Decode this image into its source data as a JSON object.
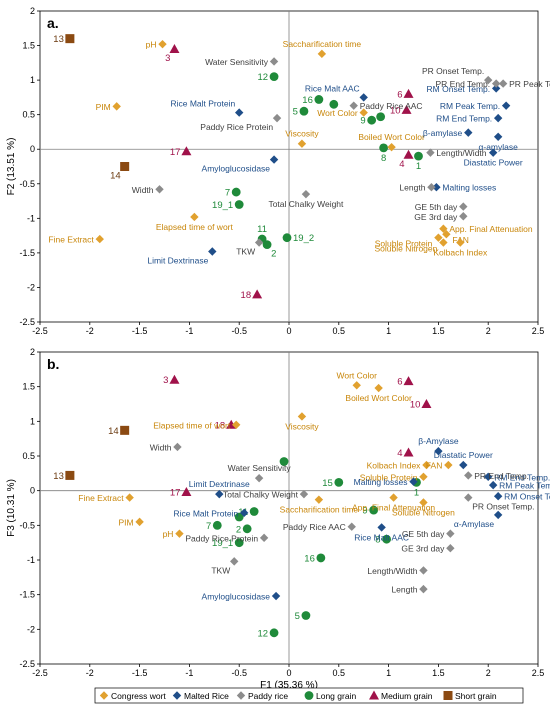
{
  "colors": {
    "congress_wort": "#E1A12F",
    "malted_rice": "#1F4E89",
    "paddy_rice": "#8C8C8C",
    "long_grain": "#1F8A3A",
    "medium_grain": "#A0124A",
    "short_grain": "#8B4A12",
    "label_congress": "#C8860A",
    "label_malted": "#1F4E89",
    "label_paddy": "#404040",
    "label_long": "#1F8A3A",
    "label_medium": "#A0124A",
    "label_short": "#6B3A10",
    "axis": "#000000",
    "zero_line": "#7F7F7F"
  },
  "legend": [
    {
      "key": "congress_wort",
      "label": "Congress wort",
      "marker": "diamond"
    },
    {
      "key": "malted_rice",
      "label": "Malted Rice",
      "marker": "diamond"
    },
    {
      "key": "paddy_rice",
      "label": "Paddy rice",
      "marker": "diamond"
    },
    {
      "key": "long_grain",
      "label": "Long grain",
      "marker": "circle"
    },
    {
      "key": "medium_grain",
      "label": "Medium grain",
      "marker": "triangle"
    },
    {
      "key": "short_grain",
      "label": "Short grain",
      "marker": "square"
    }
  ],
  "chart_data": [
    {
      "panel_label": "a.",
      "type": "scatter",
      "xlabel": "",
      "ylabel": "F2 (13.51 %)",
      "xlim": [
        -2.5,
        2.5
      ],
      "ylim": [
        -2.5,
        2.0
      ],
      "xticks": [
        "-2.5",
        "-2",
        "-1.5",
        "-1",
        "-0.5",
        "0",
        "0.5",
        "1",
        "1.5",
        "2",
        "2.5"
      ],
      "yticks": [
        "2",
        "1.5",
        "1",
        "0.5",
        "0",
        "-0.5",
        "-1",
        "-1.5",
        "-2",
        "-2.5"
      ],
      "points": [
        {
          "label": "13",
          "group": "short_grain",
          "x": -2.2,
          "y": 1.6,
          "pos": "left"
        },
        {
          "label": "14",
          "group": "short_grain",
          "x": -1.65,
          "y": -0.25,
          "pos": "belowleft"
        },
        {
          "label": "3",
          "group": "medium_grain",
          "x": -1.15,
          "y": 1.45,
          "pos": "belowleft"
        },
        {
          "label": "17",
          "group": "medium_grain",
          "x": -1.03,
          "y": -0.03,
          "pos": "left"
        },
        {
          "label": "18",
          "group": "medium_grain",
          "x": -0.32,
          "y": -2.1,
          "pos": "left"
        },
        {
          "label": "6",
          "group": "medium_grain",
          "x": 1.2,
          "y": 0.8,
          "pos": "left"
        },
        {
          "label": "10",
          "group": "medium_grain",
          "x": 1.18,
          "y": 0.57,
          "pos": "left"
        },
        {
          "label": "4",
          "group": "medium_grain",
          "x": 1.2,
          "y": -0.08,
          "pos": "belowleft"
        },
        {
          "label": "12",
          "group": "long_grain",
          "x": -0.15,
          "y": 1.05,
          "pos": "left"
        },
        {
          "label": "16",
          "group": "long_grain",
          "x": 0.3,
          "y": 0.72,
          "pos": "left"
        },
        {
          "label": "",
          "group": "long_grain",
          "x": 0.45,
          "y": 0.65,
          "pos": "none"
        },
        {
          "label": "5",
          "group": "long_grain",
          "x": 0.15,
          "y": 0.55,
          "pos": "left"
        },
        {
          "label": "9",
          "group": "long_grain",
          "x": 0.83,
          "y": 0.42,
          "pos": "left"
        },
        {
          "label": "",
          "group": "long_grain",
          "x": 0.92,
          "y": 0.47,
          "pos": "none"
        },
        {
          "label": "8",
          "group": "long_grain",
          "x": 0.95,
          "y": 0.02,
          "pos": "below"
        },
        {
          "label": "1",
          "group": "long_grain",
          "x": 1.3,
          "y": -0.1,
          "pos": "below"
        },
        {
          "label": "7",
          "group": "long_grain",
          "x": -0.53,
          "y": -0.62,
          "pos": "left"
        },
        {
          "label": "19_1",
          "group": "long_grain",
          "x": -0.5,
          "y": -0.8,
          "pos": "left"
        },
        {
          "label": "11",
          "group": "long_grain",
          "x": -0.27,
          "y": -1.3,
          "pos": "above"
        },
        {
          "label": "2",
          "group": "long_grain",
          "x": -0.22,
          "y": -1.38,
          "pos": "belowright"
        },
        {
          "label": "19_2",
          "group": "long_grain",
          "x": -0.02,
          "y": -1.28,
          "pos": "right"
        },
        {
          "label": "Saccharification time",
          "group": "congress_wort",
          "x": 0.33,
          "y": 1.38,
          "pos": "above"
        },
        {
          "label": "pH",
          "group": "congress_wort",
          "x": -1.27,
          "y": 1.52,
          "pos": "left"
        },
        {
          "label": "PIM",
          "group": "congress_wort",
          "x": -1.73,
          "y": 0.62,
          "pos": "left"
        },
        {
          "label": "Viscosity",
          "group": "congress_wort",
          "x": 0.13,
          "y": 0.08,
          "pos": "above"
        },
        {
          "label": "Wort Color",
          "group": "congress_wort",
          "x": 0.75,
          "y": 0.53,
          "pos": "left"
        },
        {
          "label": "Boiled Wort Color",
          "group": "congress_wort",
          "x": 1.03,
          "y": 0.03,
          "pos": "above"
        },
        {
          "label": "Elapsed time of wort",
          "group": "congress_wort",
          "x": -0.95,
          "y": -0.98,
          "pos": "below"
        },
        {
          "label": "Fine Extract",
          "group": "congress_wort",
          "x": -1.9,
          "y": -1.3,
          "pos": "left"
        },
        {
          "label": "App. Final Attenuation",
          "group": "congress_wort",
          "x": 1.55,
          "y": -1.15,
          "pos": "right"
        },
        {
          "label": "Soluble Protein",
          "group": "congress_wort",
          "x": 1.5,
          "y": -1.28,
          "pos": "leftbelow"
        },
        {
          "label": "FAN",
          "group": "congress_wort",
          "x": 1.58,
          "y": -1.23,
          "pos": "rightbelow"
        },
        {
          "label": "Soluble Nitrogen",
          "group": "congress_wort",
          "x": 1.55,
          "y": -1.35,
          "pos": "leftbelow"
        },
        {
          "label": "Kolbach Index",
          "group": "congress_wort",
          "x": 1.72,
          "y": -1.35,
          "pos": "below"
        },
        {
          "label": "Rice Malt Protein",
          "group": "malted_rice",
          "x": -0.5,
          "y": 0.53,
          "pos": "aboveleft"
        },
        {
          "label": "Rice Malt AAC",
          "group": "malted_rice",
          "x": 0.75,
          "y": 0.75,
          "pos": "aboveleft"
        },
        {
          "label": "Amyloglucosidase",
          "group": "malted_rice",
          "x": -0.15,
          "y": -0.15,
          "pos": "belowleft"
        },
        {
          "label": "Limit Dextrinase",
          "group": "malted_rice",
          "x": -0.77,
          "y": -1.48,
          "pos": "belowleft"
        },
        {
          "label": "RM Onset Temp.",
          "group": "malted_rice",
          "x": 2.08,
          "y": 0.88,
          "pos": "left"
        },
        {
          "label": "RM Peak Temp.",
          "group": "malted_rice",
          "x": 2.18,
          "y": 0.63,
          "pos": "left"
        },
        {
          "label": "RM End Temp.",
          "group": "malted_rice",
          "x": 2.1,
          "y": 0.45,
          "pos": "left"
        },
        {
          "label": "β-amylase",
          "group": "malted_rice",
          "x": 1.8,
          "y": 0.24,
          "pos": "left"
        },
        {
          "label": "α-amylase",
          "group": "malted_rice",
          "x": 2.1,
          "y": 0.18,
          "pos": "below"
        },
        {
          "label": "Diastatic Power",
          "group": "malted_rice",
          "x": 2.05,
          "y": -0.05,
          "pos": "below"
        },
        {
          "label": "Malting losses",
          "group": "malted_rice",
          "x": 1.48,
          "y": -0.55,
          "pos": "right"
        },
        {
          "label": "Water Sensitivity",
          "group": "paddy_rice",
          "x": -0.15,
          "y": 1.27,
          "pos": "left"
        },
        {
          "label": "Paddy Rice AAC",
          "group": "paddy_rice",
          "x": 0.65,
          "y": 0.63,
          "pos": "right"
        },
        {
          "label": "Paddy Rice Protein",
          "group": "paddy_rice",
          "x": -0.12,
          "y": 0.45,
          "pos": "belowleft"
        },
        {
          "label": "PR Onset Temp.",
          "group": "paddy_rice",
          "x": 2.0,
          "y": 1.0,
          "pos": "aboveleft"
        },
        {
          "label": "PR End Temp.",
          "group": "paddy_rice",
          "x": 2.08,
          "y": 0.95,
          "pos": "left"
        },
        {
          "label": "PR Peak Temp.",
          "group": "paddy_rice",
          "x": 2.15,
          "y": 0.95,
          "pos": "right"
        },
        {
          "label": "Length/Width",
          "group": "paddy_rice",
          "x": 1.42,
          "y": -0.05,
          "pos": "right"
        },
        {
          "label": "Width",
          "group": "paddy_rice",
          "x": -1.3,
          "y": -0.58,
          "pos": "left"
        },
        {
          "label": "Total Chalky Weight",
          "group": "paddy_rice",
          "x": 0.17,
          "y": -0.65,
          "pos": "below"
        },
        {
          "label": "Length",
          "group": "paddy_rice",
          "x": 1.43,
          "y": -0.55,
          "pos": "left"
        },
        {
          "label": "GE 5th day",
          "group": "paddy_rice",
          "x": 1.75,
          "y": -0.83,
          "pos": "left"
        },
        {
          "label": "GE 3rd day",
          "group": "paddy_rice",
          "x": 1.75,
          "y": -0.97,
          "pos": "left"
        },
        {
          "label": "TKW",
          "group": "paddy_rice",
          "x": -0.3,
          "y": -1.35,
          "pos": "belowleft"
        }
      ]
    },
    {
      "panel_label": "b.",
      "type": "scatter",
      "xlabel": "F1 (35.36 %)",
      "ylabel": "F3 (10.31 %)",
      "xlim": [
        -2.5,
        2.5
      ],
      "ylim": [
        -2.5,
        2.0
      ],
      "xticks": [
        "-2.5",
        "-2",
        "-1.5",
        "-1",
        "-0.5",
        "0",
        "0.5",
        "1",
        "1.5",
        "2",
        "2.5"
      ],
      "yticks": [
        "2",
        "1.5",
        "1",
        "0.5",
        "0",
        "-0.5",
        "-1",
        "-1.5",
        "-2",
        "-2.5"
      ],
      "points": [
        {
          "label": "3",
          "group": "medium_grain",
          "x": -1.15,
          "y": 1.6,
          "pos": "left"
        },
        {
          "label": "18",
          "group": "medium_grain",
          "x": -0.58,
          "y": 0.95,
          "pos": "left"
        },
        {
          "label": "17",
          "group": "medium_grain",
          "x": -1.03,
          "y": -0.02,
          "pos": "left"
        },
        {
          "label": "6",
          "group": "medium_grain",
          "x": 1.2,
          "y": 1.58,
          "pos": "left"
        },
        {
          "label": "10",
          "group": "medium_grain",
          "x": 1.38,
          "y": 1.25,
          "pos": "left"
        },
        {
          "label": "4",
          "group": "medium_grain",
          "x": 1.2,
          "y": 0.55,
          "pos": "left"
        },
        {
          "label": "14",
          "group": "short_grain",
          "x": -1.65,
          "y": 0.87,
          "pos": "left"
        },
        {
          "label": "13",
          "group": "short_grain",
          "x": -2.2,
          "y": 0.22,
          "pos": "left"
        },
        {
          "label": "15",
          "group": "long_grain",
          "x": 0.5,
          "y": 0.12,
          "pos": "left"
        },
        {
          "label": "",
          "group": "long_grain",
          "x": -0.05,
          "y": 0.42,
          "pos": "none"
        },
        {
          "label": "1",
          "group": "long_grain",
          "x": 1.28,
          "y": 0.12,
          "pos": "below"
        },
        {
          "label": "9",
          "group": "long_grain",
          "x": 0.85,
          "y": -0.28,
          "pos": "left"
        },
        {
          "label": "8",
          "group": "long_grain",
          "x": 0.98,
          "y": -0.7,
          "pos": "left"
        },
        {
          "label": "11",
          "group": "long_grain",
          "x": -0.35,
          "y": -0.3,
          "pos": "left"
        },
        {
          "label": "2",
          "group": "long_grain",
          "x": -0.42,
          "y": -0.55,
          "pos": "left"
        },
        {
          "label": "",
          "group": "long_grain",
          "x": -0.5,
          "y": -0.38,
          "pos": "none"
        },
        {
          "label": "7",
          "group": "long_grain",
          "x": -0.72,
          "y": -0.5,
          "pos": "left"
        },
        {
          "label": "19_1",
          "group": "long_grain",
          "x": -0.5,
          "y": -0.75,
          "pos": "left"
        },
        {
          "label": "16",
          "group": "long_grain",
          "x": 0.32,
          "y": -0.97,
          "pos": "left"
        },
        {
          "label": "5",
          "group": "long_grain",
          "x": 0.17,
          "y": -1.8,
          "pos": "left"
        },
        {
          "label": "12",
          "group": "long_grain",
          "x": -0.15,
          "y": -2.05,
          "pos": "left"
        },
        {
          "label": "Wort Color",
          "group": "congress_wort",
          "x": 0.68,
          "y": 1.52,
          "pos": "above"
        },
        {
          "label": "Boiled Wort Color",
          "group": "congress_wort",
          "x": 0.9,
          "y": 1.48,
          "pos": "below"
        },
        {
          "label": "Viscosity",
          "group": "congress_wort",
          "x": 0.13,
          "y": 1.07,
          "pos": "below"
        },
        {
          "label": "Elapsed time of wort",
          "group": "congress_wort",
          "x": -0.53,
          "y": 0.95,
          "pos": "left"
        },
        {
          "label": "Fine Extract",
          "group": "congress_wort",
          "x": -1.6,
          "y": -0.1,
          "pos": "left"
        },
        {
          "label": "PIM",
          "group": "congress_wort",
          "x": -1.5,
          "y": -0.45,
          "pos": "left"
        },
        {
          "label": "pH",
          "group": "congress_wort",
          "x": -1.1,
          "y": -0.62,
          "pos": "left"
        },
        {
          "label": "Saccharification time",
          "group": "congress_wort",
          "x": 0.3,
          "y": -0.13,
          "pos": "below"
        },
        {
          "label": "Kolbach Index",
          "group": "congress_wort",
          "x": 1.38,
          "y": 0.37,
          "pos": "left"
        },
        {
          "label": "FAN",
          "group": "congress_wort",
          "x": 1.6,
          "y": 0.37,
          "pos": "left"
        },
        {
          "label": "Soluble Protein",
          "group": "congress_wort",
          "x": 1.35,
          "y": 0.2,
          "pos": "left"
        },
        {
          "label": "App. Final Attenuation",
          "group": "congress_wort",
          "x": 1.05,
          "y": -0.1,
          "pos": "below"
        },
        {
          "label": "Soluble Nitrogen",
          "group": "congress_wort",
          "x": 1.35,
          "y": -0.17,
          "pos": "below"
        },
        {
          "label": "β-Amylase",
          "group": "malted_rice",
          "x": 1.5,
          "y": 0.57,
          "pos": "above"
        },
        {
          "label": "Diastatic Power",
          "group": "malted_rice",
          "x": 1.75,
          "y": 0.37,
          "pos": "above"
        },
        {
          "label": "RM End Temp.",
          "group": "malted_rice",
          "x": 2.0,
          "y": 0.2,
          "pos": "right"
        },
        {
          "label": "RM Peak Temp.",
          "group": "malted_rice",
          "x": 2.05,
          "y": 0.08,
          "pos": "right"
        },
        {
          "label": "RM Onset Temp.",
          "group": "malted_rice",
          "x": 2.1,
          "y": -0.08,
          "pos": "right"
        },
        {
          "label": "α-Amylase",
          "group": "malted_rice",
          "x": 2.1,
          "y": -0.35,
          "pos": "belowleft"
        },
        {
          "label": "Limit Dextrinase",
          "group": "malted_rice",
          "x": -0.7,
          "y": -0.05,
          "pos": "above"
        },
        {
          "label": "Rice Malt Protein",
          "group": "malted_rice",
          "x": -0.45,
          "y": -0.32,
          "pos": "left"
        },
        {
          "label": "Rice Malt AAC",
          "group": "malted_rice",
          "x": 0.93,
          "y": -0.53,
          "pos": "below"
        },
        {
          "label": "Malting losses",
          "group": "malted_rice",
          "x": 1.25,
          "y": 0.13,
          "pos": "left"
        },
        {
          "label": "Amyloglucosidase",
          "group": "malted_rice",
          "x": -0.13,
          "y": -1.52,
          "pos": "left"
        },
        {
          "label": "Water Sensitivity",
          "group": "paddy_rice",
          "x": -0.3,
          "y": 0.18,
          "pos": "above"
        },
        {
          "label": "Width",
          "group": "paddy_rice",
          "x": -1.12,
          "y": 0.63,
          "pos": "left"
        },
        {
          "label": "Total Chalky Weight",
          "group": "paddy_rice",
          "x": 0.15,
          "y": -0.05,
          "pos": "left"
        },
        {
          "label": "Paddy Rice AAC",
          "group": "paddy_rice",
          "x": 0.63,
          "y": -0.52,
          "pos": "left"
        },
        {
          "label": "Paddy Rice Protein",
          "group": "paddy_rice",
          "x": -0.25,
          "y": -0.68,
          "pos": "left"
        },
        {
          "label": "PR End Temp.",
          "group": "paddy_rice",
          "x": 1.8,
          "y": 0.22,
          "pos": "right"
        },
        {
          "label": "PR Onset Temp.",
          "group": "paddy_rice",
          "x": 1.8,
          "y": -0.1,
          "pos": "belowright"
        },
        {
          "label": "GE 5th day",
          "group": "paddy_rice",
          "x": 1.62,
          "y": -0.62,
          "pos": "left"
        },
        {
          "label": "GE 3rd day",
          "group": "paddy_rice",
          "x": 1.62,
          "y": -0.83,
          "pos": "left"
        },
        {
          "label": "TKW",
          "group": "paddy_rice",
          "x": -0.55,
          "y": -1.02,
          "pos": "belowleft"
        },
        {
          "label": "Length/Width",
          "group": "paddy_rice",
          "x": 1.35,
          "y": -1.15,
          "pos": "left"
        },
        {
          "label": "Length",
          "group": "paddy_rice",
          "x": 1.35,
          "y": -1.42,
          "pos": "left"
        }
      ]
    }
  ]
}
